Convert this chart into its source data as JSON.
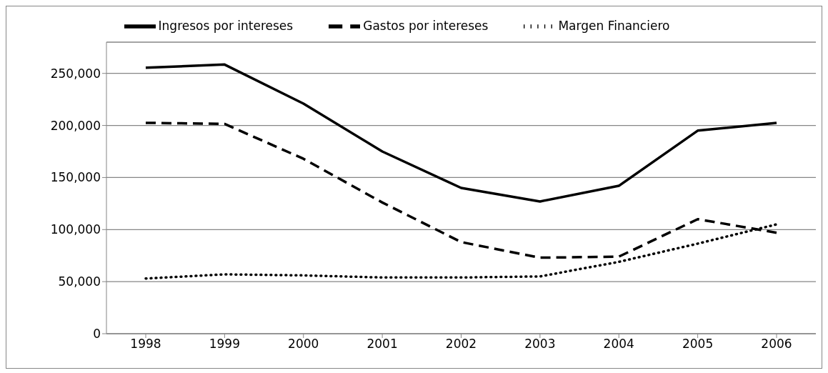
{
  "chart_data": {
    "type": "line",
    "categories": [
      "1998",
      "1999",
      "2000",
      "2001",
      "2002",
      "2003",
      "2004",
      "2005",
      "2006"
    ],
    "series": [
      {
        "name": "Ingresos por intereses",
        "color": "#000000",
        "line_style": "solid",
        "values": [
          255500,
          258500,
          221000,
          175000,
          140000,
          127000,
          142000,
          195000,
          202500
        ]
      },
      {
        "name": "Gastos por intereses",
        "color": "#000000",
        "line_style": "dashed",
        "values": [
          202500,
          201500,
          168000,
          126000,
          88000,
          73000,
          74000,
          110000,
          97000
        ]
      },
      {
        "name": "Margen Financiero",
        "color": "#000000",
        "line_style": "dotted",
        "values": [
          53000,
          57000,
          56000,
          54000,
          54000,
          55000,
          69000,
          86500,
          105000
        ]
      }
    ],
    "ylim": [
      0,
      280000
    ],
    "yticks": [
      0,
      {
        "value": 50000,
        "label": "50,000"
      },
      {
        "value": 100000,
        "label": "100,000"
      },
      {
        "value": 150000,
        "label": "150,000"
      },
      {
        "value": 200000,
        "label": "200,000"
      },
      {
        "value": 250000,
        "label": "250,000"
      }
    ],
    "grid": "y",
    "legend": "top",
    "marker": "none"
  }
}
